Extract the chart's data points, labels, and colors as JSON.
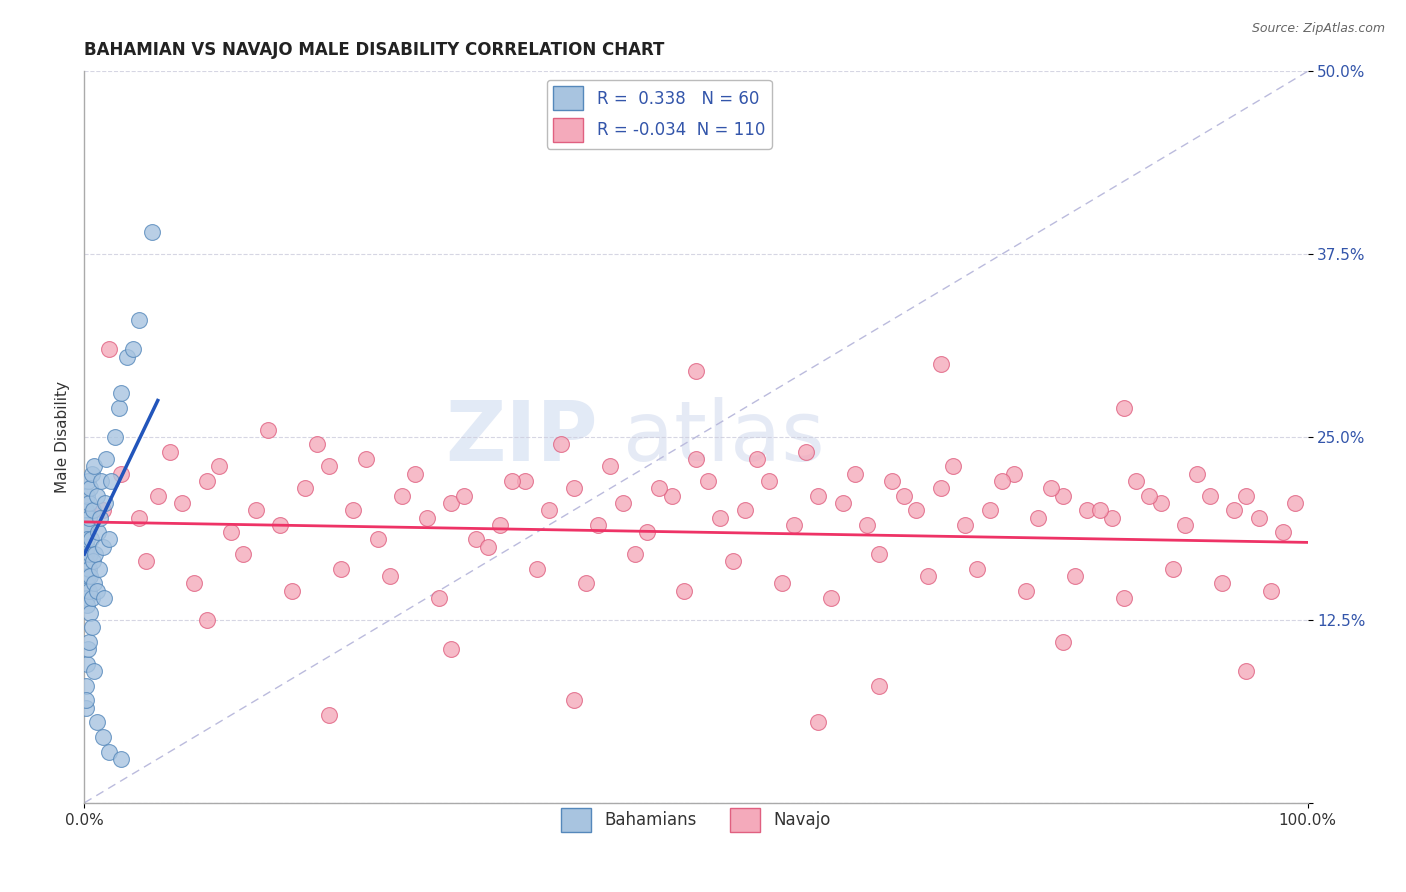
{
  "title": "BAHAMIAN VS NAVAJO MALE DISABILITY CORRELATION CHART",
  "source_text": "Source: ZipAtlas.com",
  "ylabel": "Male Disability",
  "legend_labels": [
    "Bahamians",
    "Navajo"
  ],
  "legend_r": [
    0.338,
    -0.034
  ],
  "legend_n": [
    60,
    110
  ],
  "xlim": [
    0,
    100
  ],
  "ylim": [
    0,
    50
  ],
  "blue_color": "#A8C4E0",
  "pink_color": "#F4AABB",
  "blue_edge": "#5588BB",
  "pink_edge": "#E06080",
  "blue_line_color": "#2255BB",
  "pink_line_color": "#EE3366",
  "diag_line_color": "#BBBBDD",
  "tick_label_color": "#3355AA",
  "blue_scatter_x": [
    0.1,
    0.1,
    0.1,
    0.1,
    0.15,
    0.15,
    0.2,
    0.2,
    0.2,
    0.25,
    0.25,
    0.3,
    0.3,
    0.35,
    0.35,
    0.4,
    0.4,
    0.45,
    0.45,
    0.5,
    0.5,
    0.55,
    0.6,
    0.6,
    0.7,
    0.7,
    0.8,
    0.8,
    0.9,
    1.0,
    1.0,
    1.1,
    1.2,
    1.3,
    1.4,
    1.5,
    1.6,
    1.7,
    1.8,
    2.0,
    2.2,
    2.5,
    2.8,
    3.0,
    3.5,
    4.0,
    4.5,
    0.1,
    0.1,
    0.15,
    0.2,
    0.3,
    0.4,
    0.6,
    0.8,
    1.0,
    1.5,
    2.0,
    3.0,
    5.5
  ],
  "blue_scatter_y": [
    15.0,
    17.0,
    18.5,
    20.0,
    16.5,
    19.0,
    14.0,
    17.5,
    21.0,
    13.5,
    18.0,
    15.5,
    22.0,
    14.5,
    19.5,
    16.0,
    20.5,
    13.0,
    17.0,
    15.5,
    21.5,
    18.0,
    14.0,
    22.5,
    16.5,
    20.0,
    15.0,
    23.0,
    17.0,
    14.5,
    21.0,
    18.5,
    16.0,
    19.5,
    22.0,
    17.5,
    14.0,
    20.5,
    23.5,
    18.0,
    22.0,
    25.0,
    27.0,
    28.0,
    30.5,
    31.0,
    33.0,
    8.0,
    6.5,
    7.0,
    9.5,
    10.5,
    11.0,
    12.0,
    9.0,
    5.5,
    4.5,
    3.5,
    3.0,
    39.0
  ],
  "pink_scatter_x": [
    1.5,
    3.0,
    4.5,
    6.0,
    8.0,
    10.0,
    12.0,
    14.0,
    16.0,
    18.0,
    20.0,
    22.0,
    24.0,
    26.0,
    28.0,
    30.0,
    32.0,
    34.0,
    36.0,
    38.0,
    40.0,
    42.0,
    44.0,
    46.0,
    48.0,
    50.0,
    52.0,
    54.0,
    56.0,
    58.0,
    60.0,
    62.0,
    64.0,
    66.0,
    68.0,
    70.0,
    72.0,
    74.0,
    76.0,
    78.0,
    80.0,
    82.0,
    84.0,
    86.0,
    88.0,
    90.0,
    92.0,
    94.0,
    96.0,
    98.0,
    5.0,
    9.0,
    13.0,
    17.0,
    21.0,
    25.0,
    29.0,
    33.0,
    37.0,
    41.0,
    45.0,
    49.0,
    53.0,
    57.0,
    61.0,
    65.0,
    69.0,
    73.0,
    77.0,
    81.0,
    85.0,
    89.0,
    93.0,
    97.0,
    7.0,
    11.0,
    15.0,
    19.0,
    23.0,
    27.0,
    31.0,
    35.0,
    39.0,
    43.0,
    47.0,
    51.0,
    55.0,
    59.0,
    63.0,
    67.0,
    71.0,
    75.0,
    79.0,
    83.0,
    87.0,
    91.0,
    95.0,
    99.0,
    2.0,
    50.0,
    70.0,
    85.0,
    60.0,
    40.0,
    20.0,
    80.0,
    95.0,
    65.0,
    30.0,
    10.0
  ],
  "pink_scatter_y": [
    20.0,
    22.5,
    19.5,
    21.0,
    20.5,
    22.0,
    18.5,
    20.0,
    19.0,
    21.5,
    23.0,
    20.0,
    18.0,
    21.0,
    19.5,
    20.5,
    18.0,
    19.0,
    22.0,
    20.0,
    21.5,
    19.0,
    20.5,
    18.5,
    21.0,
    23.5,
    19.5,
    20.0,
    22.0,
    19.0,
    21.0,
    20.5,
    19.0,
    22.0,
    20.0,
    21.5,
    19.0,
    20.0,
    22.5,
    19.5,
    21.0,
    20.0,
    19.5,
    22.0,
    20.5,
    19.0,
    21.0,
    20.0,
    19.5,
    18.5,
    16.5,
    15.0,
    17.0,
    14.5,
    16.0,
    15.5,
    14.0,
    17.5,
    16.0,
    15.0,
    17.0,
    14.5,
    16.5,
    15.0,
    14.0,
    17.0,
    15.5,
    16.0,
    14.5,
    15.5,
    14.0,
    16.0,
    15.0,
    14.5,
    24.0,
    23.0,
    25.5,
    24.5,
    23.5,
    22.5,
    21.0,
    22.0,
    24.5,
    23.0,
    21.5,
    22.0,
    23.5,
    24.0,
    22.5,
    21.0,
    23.0,
    22.0,
    21.5,
    20.0,
    21.0,
    22.5,
    21.0,
    20.5,
    31.0,
    29.5,
    30.0,
    27.0,
    5.5,
    7.0,
    6.0,
    11.0,
    9.0,
    8.0,
    10.5,
    12.5
  ]
}
